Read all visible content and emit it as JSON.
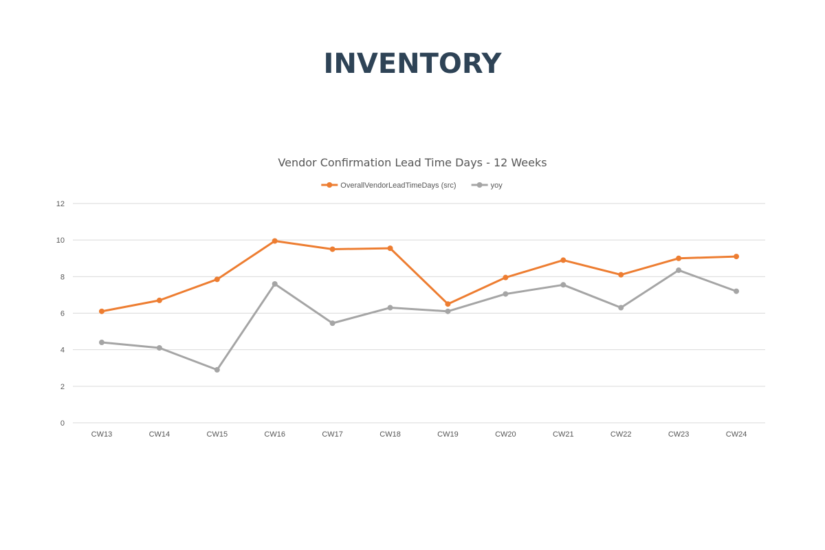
{
  "page": {
    "title": "INVENTORY"
  },
  "colors": {
    "title": "#2e4356",
    "series_primary": "#ed7d31",
    "series_secondary": "#a5a5a5",
    "gridline": "#d9d9d9",
    "text": "#555555"
  },
  "chart_data": {
    "type": "line",
    "title": "Vendor Confirmation Lead Time Days - 12 Weeks",
    "xlabel": "",
    "ylabel": "",
    "categories": [
      "CW13",
      "CW14",
      "CW15",
      "CW16",
      "CW17",
      "CW18",
      "CW19",
      "CW20",
      "CW21",
      "CW22",
      "CW23",
      "CW24"
    ],
    "series": [
      {
        "name": "OverallVendorLeadTimeDays (src)",
        "color": "#ed7d31",
        "values": [
          6.1,
          6.7,
          7.85,
          9.95,
          9.5,
          9.55,
          6.5,
          7.95,
          8.9,
          8.1,
          9.0,
          9.1
        ]
      },
      {
        "name": "yoy",
        "color": "#a5a5a5",
        "values": [
          4.4,
          4.1,
          2.9,
          7.6,
          5.45,
          6.3,
          6.1,
          7.05,
          7.55,
          6.3,
          8.35,
          7.2
        ]
      }
    ],
    "ylim": [
      0,
      12
    ],
    "yticks": [
      0,
      2,
      4,
      6,
      8,
      10,
      12
    ],
    "grid": true,
    "legend": "top-center"
  }
}
